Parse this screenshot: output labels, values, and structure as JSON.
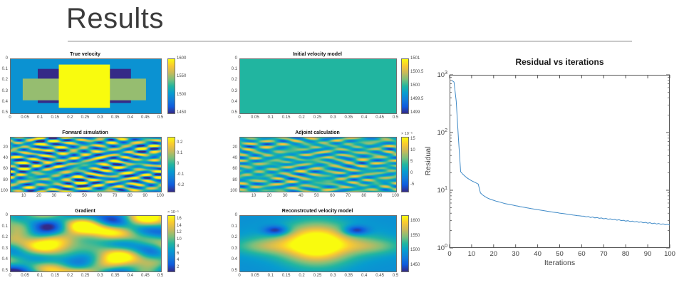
{
  "slide": {
    "title": "Results"
  },
  "chart_data": [
    {
      "type": "heatmap",
      "title": "True velocity",
      "xlim": [
        0,
        0.5
      ],
      "ylim": [
        0,
        0.5
      ],
      "x_ticks": {
        "labels": [
          "0",
          "0.05",
          "0.1",
          "0.15",
          "0.2",
          "0.25",
          "0.3",
          "0.35",
          "0.4",
          "0.45",
          "0.5"
        ],
        "fracs": [
          0,
          0.1,
          0.2,
          0.3,
          0.4,
          0.5,
          0.6,
          0.7,
          0.8,
          0.9,
          1
        ]
      },
      "y_ticks": {
        "labels": [
          "0",
          "0.1",
          "0.2",
          "0.3",
          "0.4",
          "0.5"
        ],
        "fracs": [
          0,
          0.2,
          0.4,
          0.6,
          0.8,
          1
        ]
      },
      "colorbar": {
        "exp": "",
        "ticks": [
          "1600",
          "1550",
          "1500",
          "1450"
        ],
        "fracs": [
          1,
          0.667,
          0.333,
          0
        ],
        "range": [
          1450,
          1600
        ]
      },
      "field": {
        "kind": "rects",
        "range": [
          1450,
          1600
        ],
        "rects": [
          [
            0,
            0,
            1,
            1,
            1500
          ],
          [
            0.18,
            0.18,
            0.62,
            0.63,
            1450
          ],
          [
            0.08,
            0.36,
            0.82,
            0.4,
            1550
          ],
          [
            0.32,
            0.1,
            0.34,
            0.8,
            1600
          ]
        ]
      }
    },
    {
      "type": "heatmap",
      "title": "Initial velocity model",
      "xlim": [
        0,
        0.5
      ],
      "ylim": [
        0,
        0.5
      ],
      "x_ticks": {
        "labels": [
          "0",
          "0.05",
          "0.1",
          "0.15",
          "0.2",
          "0.25",
          "0.3",
          "0.35",
          "0.4",
          "0.45",
          "0.5"
        ],
        "fracs": [
          0,
          0.1,
          0.2,
          0.3,
          0.4,
          0.5,
          0.6,
          0.7,
          0.8,
          0.9,
          1
        ]
      },
      "y_ticks": {
        "labels": [
          "0",
          "0.1",
          "0.2",
          "0.3",
          "0.4",
          "0.5"
        ],
        "fracs": [
          0,
          0.2,
          0.4,
          0.6,
          0.8,
          1
        ]
      },
      "colorbar": {
        "exp": "",
        "ticks": [
          "1501",
          "1500.5",
          "1500",
          "1499.5",
          "1499"
        ],
        "fracs": [
          1,
          0.75,
          0.5,
          0.25,
          0
        ],
        "range": [
          1499,
          1501
        ]
      },
      "field": {
        "kind": "flat",
        "range": [
          1499,
          1501
        ],
        "value": 1500
      }
    },
    {
      "type": "heatmap",
      "title": "Forward simulation",
      "xlim": [
        1,
        100
      ],
      "ylim": [
        1,
        100
      ],
      "x_ticks": {
        "labels": [
          "10",
          "20",
          "30",
          "40",
          "50",
          "60",
          "70",
          "80",
          "90",
          "100"
        ],
        "fracs": [
          0.0909,
          0.1919,
          0.2929,
          0.3939,
          0.4949,
          0.596,
          0.697,
          0.798,
          0.899,
          1
        ]
      },
      "y_ticks": {
        "labels": [
          "20",
          "40",
          "60",
          "80",
          "100"
        ],
        "fracs": [
          0.1919,
          0.3939,
          0.596,
          0.798,
          1
        ]
      },
      "colorbar": {
        "exp": "",
        "ticks": [
          "0.2",
          "0.1",
          "0",
          "-0.1",
          "-0.2"
        ],
        "fracs": [
          0.9,
          0.7,
          0.5,
          0.3,
          0.1
        ],
        "range": [
          -0.25,
          0.25
        ]
      },
      "field": {
        "kind": "waves",
        "range": [
          -0.25,
          0.25
        ],
        "bias": 0,
        "comps": [
          [
            0.09,
            5,
            8,
            0.5
          ],
          [
            0.08,
            -6,
            9,
            1.7
          ],
          [
            0.07,
            4,
            -10,
            2.9
          ],
          [
            0.06,
            7,
            6,
            4.1
          ],
          [
            0.06,
            -3,
            11,
            0.9
          ],
          [
            0.05,
            8,
            -7,
            2.2
          ],
          [
            0.05,
            2,
            9,
            3.6
          ],
          [
            0.04,
            6,
            10,
            5.0
          ],
          [
            0.04,
            -5,
            -8,
            1.2
          ],
          [
            0.03,
            7,
            12,
            2.6
          ]
        ]
      }
    },
    {
      "type": "heatmap",
      "title": "Adjoint calculation",
      "xlim": [
        1,
        100
      ],
      "ylim": [
        1,
        100
      ],
      "x_ticks": {
        "labels": [
          "10",
          "20",
          "30",
          "40",
          "50",
          "60",
          "70",
          "80",
          "90",
          "100"
        ],
        "fracs": [
          0.0909,
          0.1919,
          0.2929,
          0.3939,
          0.4949,
          0.596,
          0.697,
          0.798,
          0.899,
          1
        ]
      },
      "y_ticks": {
        "labels": [
          "20",
          "40",
          "60",
          "80",
          "100"
        ],
        "fracs": [
          0.1919,
          0.3939,
          0.596,
          0.798,
          1
        ]
      },
      "colorbar": {
        "exp": "× 10⁻⁵",
        "ticks": [
          "15",
          "10",
          "5",
          "0",
          "-5"
        ],
        "fracs": [
          0.958,
          0.75,
          0.542,
          0.333,
          0.125
        ],
        "range": [
          -8,
          16
        ]
      },
      "field": {
        "kind": "waves",
        "range": [
          -8,
          16
        ],
        "bias": 4,
        "comps": [
          [
            2.5,
            4,
            7,
            0.3
          ],
          [
            2.2,
            -5,
            9,
            1.9
          ],
          [
            2.0,
            6,
            -8,
            3.1
          ],
          [
            1.8,
            3,
            10,
            4.4
          ],
          [
            1.6,
            -7,
            6,
            0.8
          ],
          [
            1.5,
            5,
            11,
            2.5
          ],
          [
            1.3,
            8,
            -9,
            3.9
          ],
          [
            1.2,
            -4,
            12,
            5.2
          ],
          [
            1.0,
            7,
            8,
            1.5
          ]
        ]
      }
    },
    {
      "type": "heatmap",
      "title": "Gradient",
      "xlim": [
        0,
        0.5
      ],
      "ylim": [
        0,
        0.5
      ],
      "x_ticks": {
        "labels": [
          "0",
          "0.05",
          "0.1",
          "0.15",
          "0.2",
          "0.25",
          "0.3",
          "0.35",
          "0.4",
          "0.45",
          "0.5"
        ],
        "fracs": [
          0,
          0.1,
          0.2,
          0.3,
          0.4,
          0.5,
          0.6,
          0.7,
          0.8,
          0.9,
          1
        ]
      },
      "y_ticks": {
        "labels": [
          "0",
          "0.1",
          "0.2",
          "0.3",
          "0.4",
          "0.5"
        ],
        "fracs": [
          0,
          0.2,
          0.4,
          0.6,
          0.8,
          1
        ]
      },
      "colorbar": {
        "exp": "× 10⁻⁵",
        "ticks": [
          "16",
          "14",
          "12",
          "10",
          "8",
          "6",
          "4",
          "2"
        ],
        "fracs": [
          0.9375,
          0.8125,
          0.6875,
          0.5625,
          0.4375,
          0.3125,
          0.1875,
          0.0625
        ],
        "range": [
          1,
          17
        ]
      },
      "field": {
        "kind": "waves",
        "range": [
          1,
          17
        ],
        "bias": 6.5,
        "comps": [
          [
            3.0,
            1,
            1.5,
            0.2
          ],
          [
            2.5,
            2,
            -1,
            1.4
          ],
          [
            2.2,
            -1.5,
            2,
            2.8
          ],
          [
            1.8,
            2.5,
            1,
            4.0
          ],
          [
            1.5,
            1,
            -2.5,
            0.6
          ],
          [
            1.2,
            3,
            2,
            2.0
          ],
          [
            1.0,
            -2,
            3,
            3.3
          ]
        ],
        "blobs": [
          [
            0.5,
            0.5,
            0.45,
            0.45,
            6
          ]
        ]
      }
    },
    {
      "type": "heatmap",
      "title": "Reconstrcuted velocity model",
      "xlim": [
        0,
        0.5
      ],
      "ylim": [
        0,
        0.5
      ],
      "x_ticks": {
        "labels": [
          "0",
          "0.05",
          "0.1",
          "0.15",
          "0.2",
          "0.25",
          "0.3",
          "0.35",
          "0.4",
          "0.45",
          "0.5"
        ],
        "fracs": [
          0,
          0.1,
          0.2,
          0.3,
          0.4,
          0.5,
          0.6,
          0.7,
          0.8,
          0.9,
          1
        ]
      },
      "y_ticks": {
        "labels": [
          "0",
          "0.1",
          "0.2",
          "0.3",
          "0.4",
          "0.5"
        ],
        "fracs": [
          0,
          0.2,
          0.4,
          0.6,
          0.8,
          1
        ]
      },
      "colorbar": {
        "exp": "",
        "ticks": [
          "1600",
          "1550",
          "1500",
          "1450"
        ],
        "fracs": [
          0.895,
          0.632,
          0.368,
          0.105
        ],
        "range": [
          1430,
          1620
        ]
      },
      "field": {
        "kind": "blobs",
        "range": [
          1430,
          1620
        ],
        "base": 1492,
        "blobs": [
          [
            0.49,
            0.5,
            0.14,
            0.26,
            120
          ],
          [
            0.49,
            0.5,
            0.27,
            0.2,
            55
          ],
          [
            0.16,
            0.54,
            0.14,
            0.1,
            45
          ],
          [
            0.84,
            0.54,
            0.14,
            0.1,
            45
          ],
          [
            0.23,
            0.26,
            0.055,
            0.06,
            -85
          ],
          [
            0.74,
            0.26,
            0.055,
            0.06,
            -85
          ]
        ]
      }
    },
    {
      "type": "line",
      "title": "Residual vs iterations",
      "xlabel": "Iterations",
      "ylabel": "Residual",
      "x_ticks": [
        0,
        10,
        20,
        30,
        40,
        50,
        60,
        70,
        80,
        90,
        100
      ],
      "y_tick_exponents": [
        0,
        1,
        2,
        3
      ],
      "xlim": [
        0,
        100
      ],
      "ylog_lim": [
        1,
        1000
      ],
      "line_color": "#3f8ac7",
      "x_start": 1,
      "values": [
        800,
        750,
        350,
        80,
        21,
        19,
        17.5,
        16.3,
        15.4,
        14.6,
        14.0,
        13.4,
        12.8,
        9.0,
        8.3,
        7.8,
        7.4,
        7.1,
        6.9,
        6.7,
        6.5,
        6.35,
        6.2,
        6.05,
        5.9,
        5.8,
        5.7,
        5.6,
        5.5,
        5.4,
        5.3,
        5.2,
        5.12,
        5.05,
        4.97,
        4.9,
        4.82,
        4.75,
        4.68,
        4.6,
        4.54,
        4.48,
        4.42,
        4.36,
        4.3,
        4.24,
        4.18,
        4.13,
        4.08,
        4.02,
        3.97,
        3.92,
        3.87,
        3.82,
        3.78,
        3.73,
        3.69,
        3.64,
        3.6,
        3.56,
        3.55,
        3.45,
        3.5,
        3.38,
        3.44,
        3.32,
        3.37,
        3.26,
        3.31,
        3.2,
        3.25,
        3.14,
        3.19,
        3.08,
        3.13,
        3.03,
        3.08,
        2.98,
        3.02,
        2.92,
        2.97,
        2.87,
        2.92,
        2.82,
        2.87,
        2.78,
        2.83,
        2.73,
        2.78,
        2.69,
        2.74,
        2.64,
        2.7,
        2.6,
        2.66,
        2.56,
        2.62,
        2.52,
        2.58,
        2.48
      ]
    }
  ]
}
